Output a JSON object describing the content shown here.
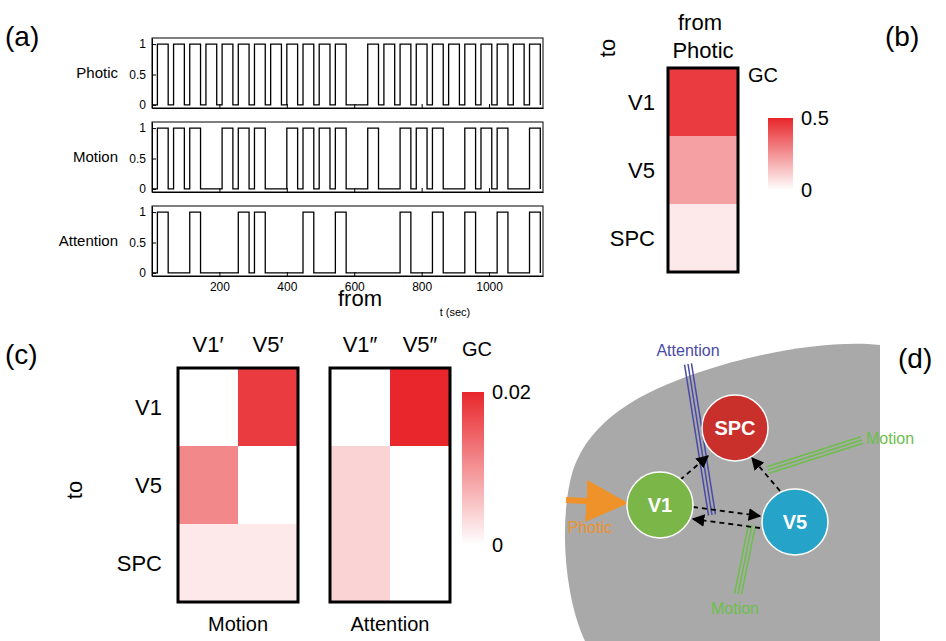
{
  "chart_data": [
    {
      "type": "line",
      "panel": "(a)",
      "line_style": "step",
      "x": [
        0,
        16,
        48,
        64,
        96,
        112,
        144,
        160,
        192,
        208,
        240,
        256,
        288,
        304,
        336,
        352,
        384,
        400,
        432,
        448,
        480,
        496,
        528,
        544,
        576,
        592,
        624,
        640,
        672,
        688,
        720,
        736,
        768,
        784,
        816,
        832,
        864,
        880,
        912,
        928,
        960,
        976,
        1008,
        1024,
        1056,
        1072,
        1104,
        1120,
        1152
      ],
      "series": [
        {
          "name": "Photic",
          "color": "#000000",
          "values": [
            0,
            1,
            0,
            1,
            0,
            1,
            0,
            1,
            0,
            1,
            0,
            1,
            0,
            1,
            0,
            1,
            0,
            1,
            0,
            1,
            0,
            1,
            0,
            1,
            0,
            0,
            0,
            1,
            0,
            1,
            0,
            1,
            0,
            1,
            0,
            1,
            0,
            1,
            0,
            1,
            0,
            1,
            0,
            1,
            0,
            1,
            0,
            1,
            0
          ]
        },
        {
          "name": "Motion",
          "color": "#000000",
          "values": [
            0,
            1,
            0,
            1,
            0,
            1,
            0,
            0,
            0,
            1,
            0,
            1,
            0,
            1,
            0,
            0,
            0,
            1,
            0,
            1,
            0,
            1,
            0,
            1,
            0,
            0,
            0,
            1,
            0,
            0,
            0,
            1,
            0,
            1,
            0,
            1,
            0,
            0,
            0,
            1,
            0,
            1,
            0,
            1,
            0,
            0,
            0,
            1,
            0
          ]
        },
        {
          "name": "Attention",
          "color": "#000000",
          "values": [
            0,
            1,
            0,
            0,
            0,
            1,
            0,
            0,
            0,
            0,
            0,
            1,
            0,
            1,
            0,
            0,
            0,
            0,
            0,
            1,
            0,
            0,
            0,
            1,
            0,
            0,
            0,
            0,
            0,
            0,
            0,
            1,
            0,
            0,
            0,
            1,
            0,
            0,
            0,
            1,
            0,
            0,
            0,
            1,
            0,
            0,
            0,
            1,
            0
          ]
        }
      ],
      "xlim": [
        0,
        1160
      ],
      "xticks": [
        200,
        400,
        600,
        800,
        1000
      ],
      "x_label": "t (sec)",
      "ylim": [
        -0.05,
        1.1
      ],
      "yticks": [
        0,
        0.5,
        1
      ]
    },
    {
      "type": "heatmap",
      "panel": "(b)",
      "x_label": "from",
      "y_label": "to",
      "rows": [
        "V1",
        "V5",
        "SPC"
      ],
      "panels": [
        {
          "columns": [
            "Photic"
          ],
          "cells": [
            [
              0.45
            ],
            [
              0.22
            ],
            [
              0.05
            ]
          ]
        }
      ],
      "color": "#e8262b",
      "colorbar_title": "GC",
      "colorbar_range": [
        0,
        0.5
      ],
      "colorbar_ticks": [
        0.5,
        0
      ]
    },
    {
      "type": "heatmap",
      "panel": "(c)",
      "x_label": "from",
      "y_label": "to",
      "rows": [
        "V1",
        "V5",
        "SPC"
      ],
      "panels": [
        {
          "name": "Motion",
          "columns": [
            "V1′",
            "V5′"
          ],
          "cells": [
            [
              0,
              0.018
            ],
            [
              0.011,
              0
            ],
            [
              0.002,
              0.002
            ]
          ]
        },
        {
          "name": "Attention",
          "columns": [
            "V1″",
            "V5″"
          ],
          "cells": [
            [
              0,
              0.02
            ],
            [
              0.004,
              0
            ],
            [
              0.004,
              0
            ]
          ]
        }
      ],
      "color": "#e8262b",
      "colorbar_title": "GC",
      "colorbar_range": [
        0,
        0.02
      ],
      "colorbar_ticks": [
        0.02,
        0
      ]
    }
  ],
  "diagram": {
    "panel": "(d)",
    "nodes": [
      {
        "label": "V1"
      },
      {
        "label": "V5"
      },
      {
        "label": "SPC"
      }
    ],
    "inputs": [
      {
        "label": "Photic"
      },
      {
        "label": "Attention"
      },
      {
        "label": "Motion"
      },
      {
        "label": "Motion"
      }
    ]
  }
}
